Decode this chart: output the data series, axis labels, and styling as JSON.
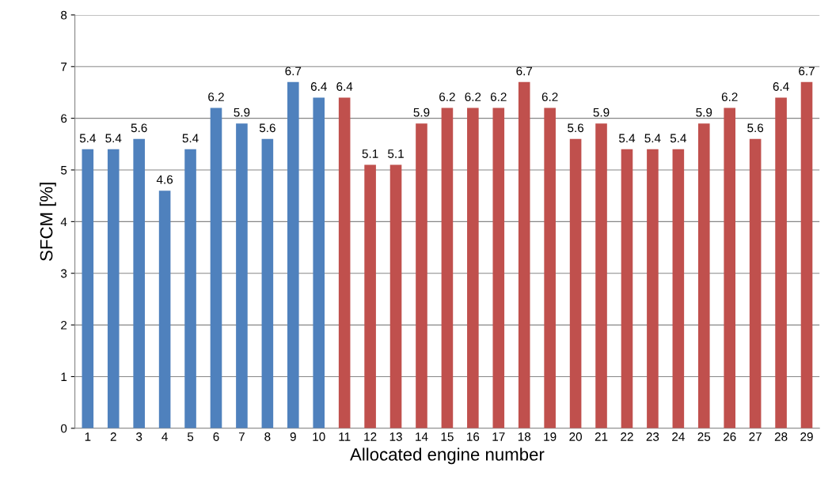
{
  "chart_data": {
    "type": "bar",
    "xlabel": "Allocated engine number",
    "ylabel": "SFCM [%]",
    "categories": [
      "1",
      "2",
      "3",
      "4",
      "5",
      "6",
      "7",
      "8",
      "9",
      "10",
      "11",
      "12",
      "13",
      "14",
      "15",
      "16",
      "17",
      "18",
      "19",
      "20",
      "21",
      "22",
      "23",
      "24",
      "25",
      "26",
      "27",
      "28",
      "29"
    ],
    "values": [
      5.4,
      5.4,
      5.6,
      4.6,
      5.4,
      6.2,
      5.9,
      5.6,
      6.7,
      6.4,
      6.4,
      5.1,
      5.1,
      5.9,
      6.2,
      6.2,
      6.2,
      6.7,
      6.2,
      5.6,
      5.9,
      5.4,
      5.4,
      5.4,
      5.9,
      6.2,
      5.6,
      6.4,
      6.7
    ],
    "colors": [
      "#4f81bd",
      "#4f81bd",
      "#4f81bd",
      "#4f81bd",
      "#4f81bd",
      "#4f81bd",
      "#4f81bd",
      "#4f81bd",
      "#4f81bd",
      "#4f81bd",
      "#c0504d",
      "#c0504d",
      "#c0504d",
      "#c0504d",
      "#c0504d",
      "#c0504d",
      "#c0504d",
      "#c0504d",
      "#c0504d",
      "#c0504d",
      "#c0504d",
      "#c0504d",
      "#c0504d",
      "#c0504d",
      "#c0504d",
      "#c0504d",
      "#c0504d",
      "#c0504d",
      "#c0504d"
    ],
    "ylim": [
      0,
      8
    ],
    "yticks": [
      0,
      1,
      2,
      3,
      4,
      5,
      6,
      7,
      8
    ],
    "grid": "y",
    "data_labels": true
  }
}
